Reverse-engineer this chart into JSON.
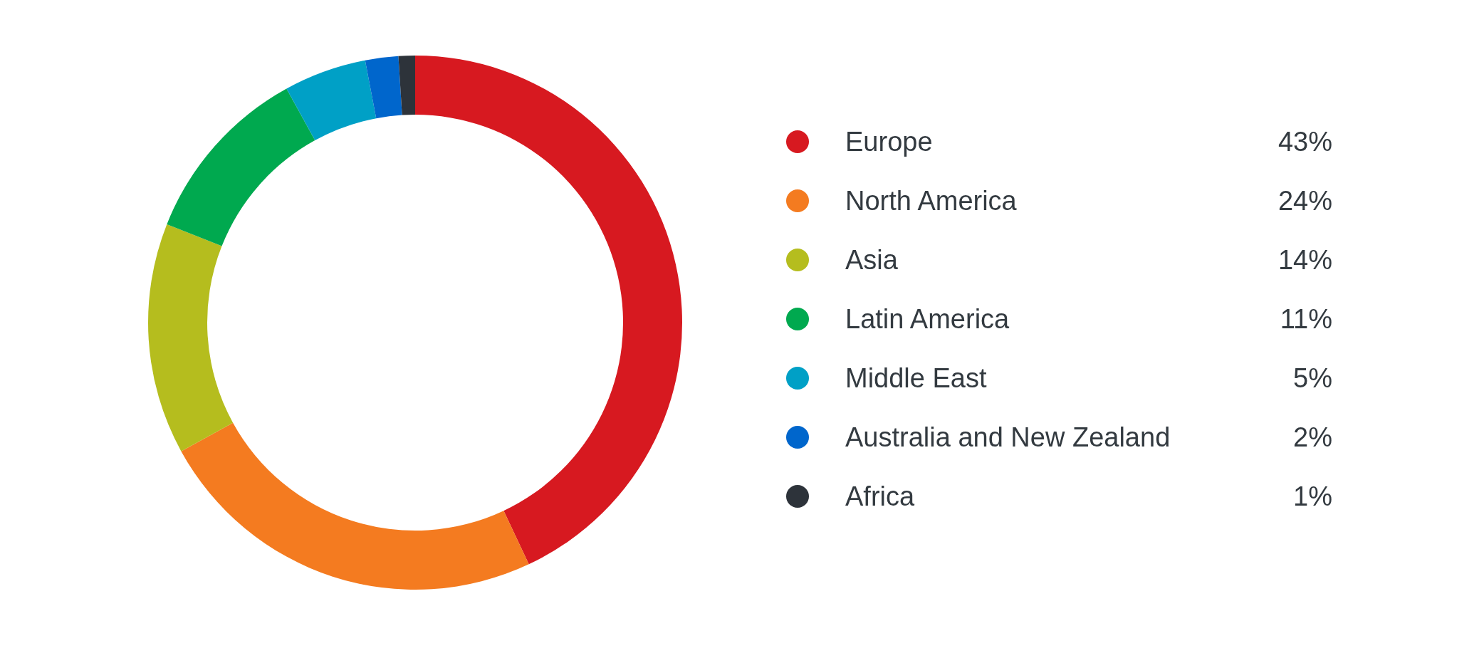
{
  "chart_data": {
    "type": "donut",
    "categories": [
      "Europe",
      "North America",
      "Asia",
      "Latin America",
      "Middle East",
      "Australia and New Zealand",
      "Africa"
    ],
    "values": [
      43,
      24,
      14,
      11,
      5,
      2,
      1
    ],
    "colors": [
      "#d71920",
      "#f47b20",
      "#b5bd1e",
      "#00a94f",
      "#00a0c6",
      "#0066cc",
      "#2d333a"
    ],
    "legend": "right",
    "value_labels": [
      "43%",
      "24%",
      "14%",
      "11%",
      "5%",
      "2%",
      "1%"
    ]
  }
}
